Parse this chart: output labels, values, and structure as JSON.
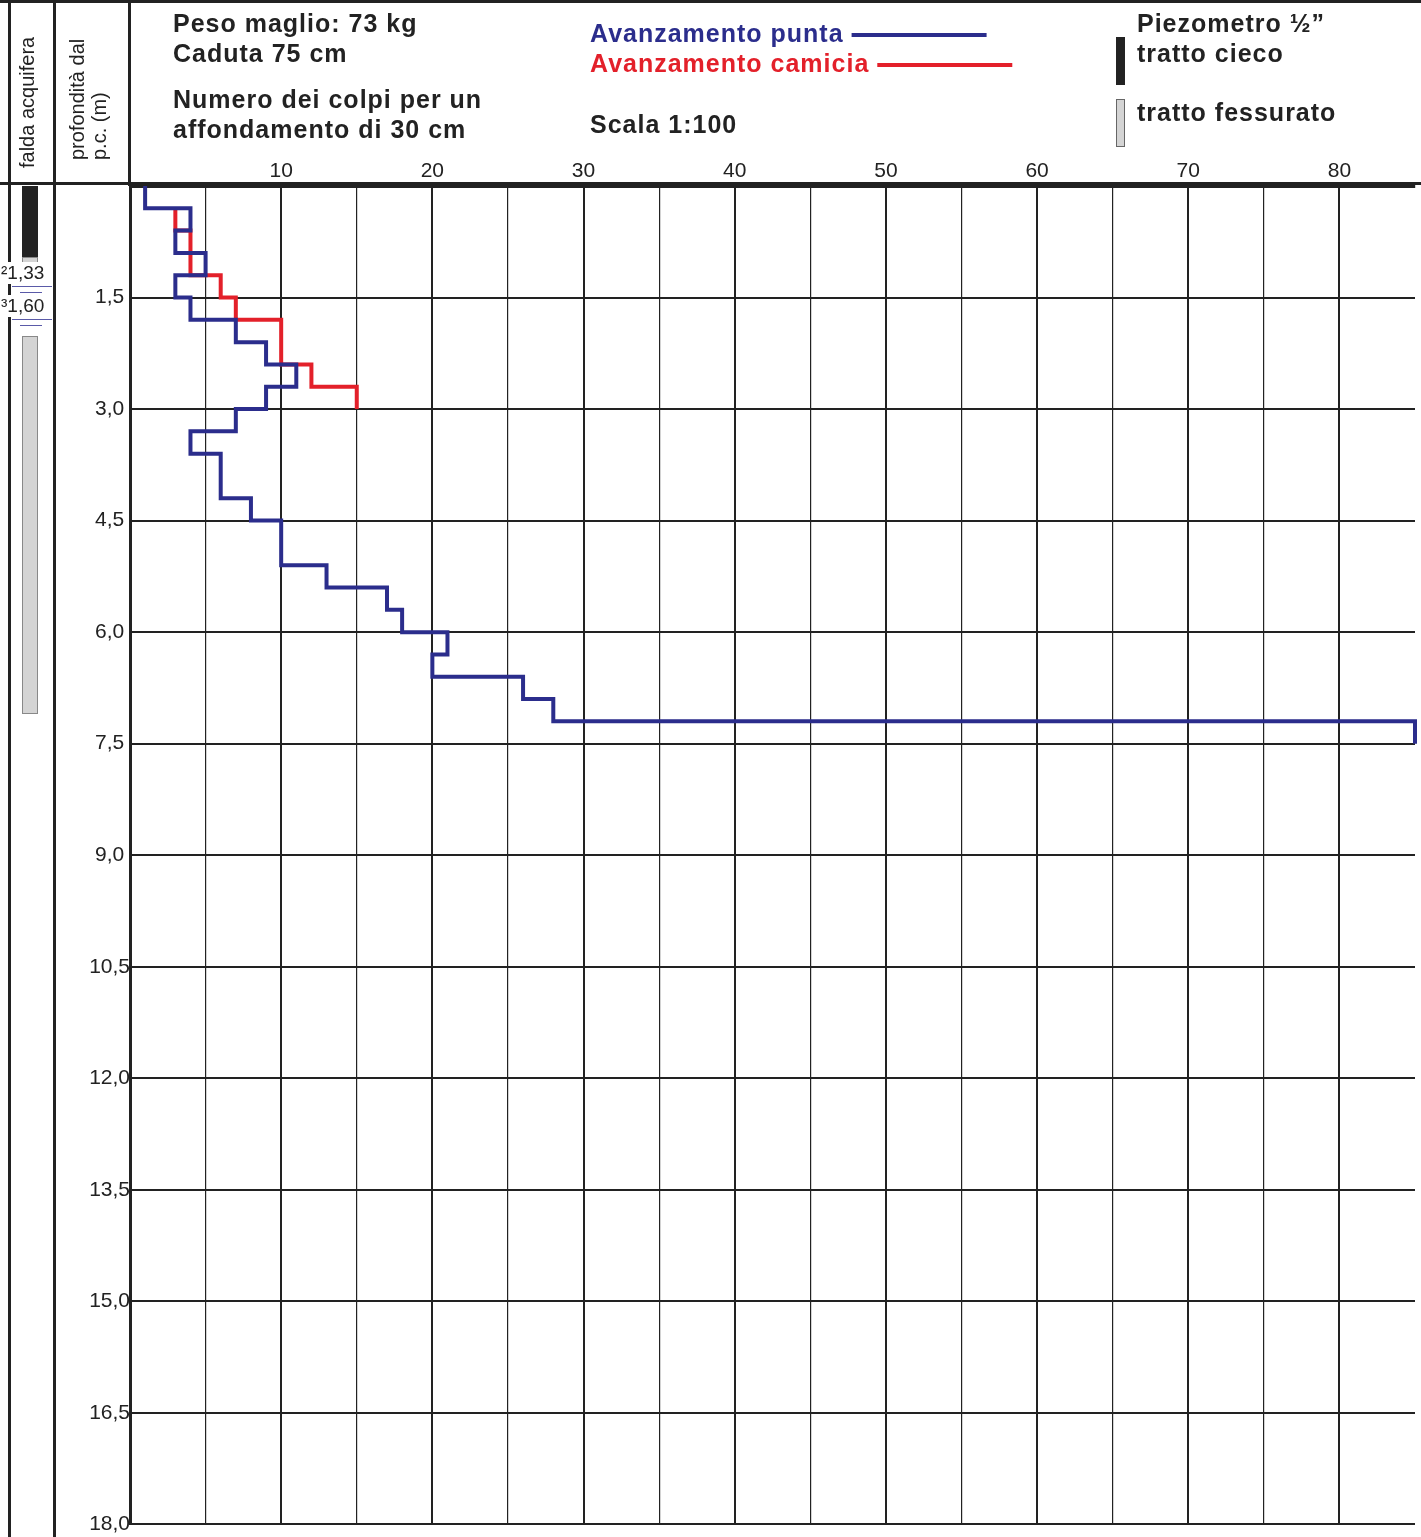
{
  "chart_data": {
    "type": "line",
    "orientation": "horizontal",
    "title": "Peso maglio: 73 kg",
    "subtitle": "Caduta 75 cm",
    "xlabel": "Numero dei colpi per un affondamento di 30 cm",
    "ylabel": "profondità dal p.c. (m)",
    "legend": "top",
    "grid": true,
    "xlim": [
      0,
      85
    ],
    "xticks": [
      {
        "value": 0,
        "label": null
      },
      {
        "value": 5,
        "label": null
      },
      10,
      {
        "value": 15,
        "label": null
      },
      20,
      {
        "value": 25,
        "label": null
      },
      30,
      {
        "value": 35,
        "label": null
      },
      40,
      {
        "value": 45,
        "label": null
      },
      50,
      {
        "value": 55,
        "label": null
      },
      60,
      {
        "value": 65,
        "label": null
      },
      70,
      {
        "value": 75,
        "label": null
      },
      80
    ],
    "ylim": [
      18,
      0
    ],
    "yticks": [
      {
        "value": 1.5,
        "label": "1,5"
      },
      {
        "value": 3,
        "label": "3,0"
      },
      {
        "value": 4.5,
        "label": "4,5"
      },
      {
        "value": 6,
        "label": "6,0"
      },
      {
        "value": 7.5,
        "label": "7,5"
      },
      {
        "value": 9,
        "label": "9,0"
      },
      {
        "value": 10.5,
        "label": "10,5"
      },
      {
        "value": 12,
        "label": "12,0"
      },
      {
        "value": 13.5,
        "label": "13,5"
      },
      {
        "value": 15,
        "label": "15,0"
      },
      {
        "value": 16.5,
        "label": "16,5"
      },
      {
        "value": 18,
        "label": "18,0"
      }
    ],
    "series": [
      {
        "name": "Avanzamento punta",
        "color": "#2b2d8c",
        "x": [
          0,
          0.3,
          0.3,
          0.6,
          0.6,
          0.9,
          0.9,
          1.2,
          1.2,
          1.5,
          1.5,
          1.8,
          1.8,
          2.1,
          2.1,
          2.4,
          2.4,
          2.7,
          2.7,
          3.0,
          3.0,
          3.3,
          3.3,
          3.6,
          3.6,
          4.2,
          4.2,
          4.5,
          4.5,
          5.1,
          5.1,
          5.4,
          5.4,
          5.7,
          5.7,
          6.0,
          6.0,
          6.3,
          6.3,
          6.6,
          6.6,
          6.9,
          6.9,
          7.2,
          7.2,
          7.5
        ],
        "values": [
          1,
          1,
          4,
          4,
          3,
          3,
          5,
          5,
          3,
          3,
          4,
          4,
          7,
          7,
          9,
          9,
          11,
          11,
          9,
          9,
          7,
          7,
          4,
          4,
          6,
          6,
          8,
          8,
          10,
          10,
          13,
          13,
          17,
          17,
          18,
          18,
          21,
          21,
          20,
          20,
          26,
          26,
          28,
          28,
          85,
          85
        ]
      },
      {
        "name": "Avanzamento camicia",
        "color": "#e3202a",
        "x": [
          0.3,
          0.6,
          0.6,
          1.2,
          1.2,
          1.5,
          1.5,
          1.8,
          1.8,
          2.4,
          2.4,
          2.7,
          2.7,
          3.0
        ],
        "values": [
          3,
          3,
          4,
          4,
          6,
          6,
          7,
          7,
          10,
          10,
          12,
          12,
          15,
          15
        ]
      }
    ],
    "annotations": [
      "Scala 1:100",
      "Piezometro ½”",
      "tratto cieco",
      "tratto fessurato",
      "falda acquifera",
      "²1,33",
      "³1,60"
    ]
  }
}
